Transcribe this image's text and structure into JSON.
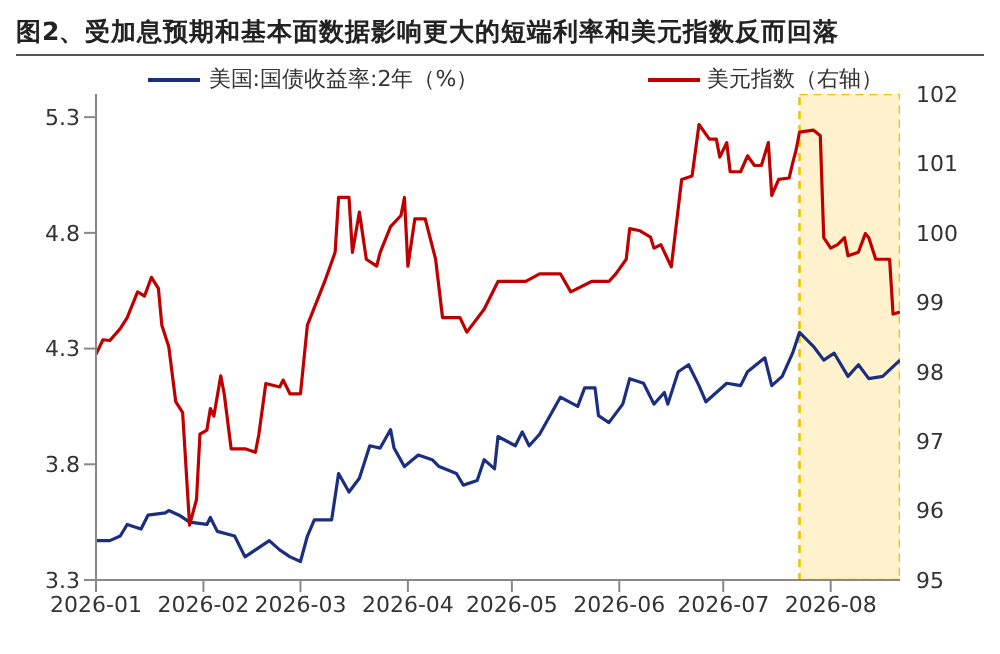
{
  "chart_data": {
    "type": "line",
    "title": "图2、受加息预期和基本面数据影响更大的短端利率和美元指数反而回落",
    "series": [
      {
        "name": "美国:国债收益率:2年（%）",
        "color": "#1b2e80",
        "x": [
          "2026-01-01",
          "2026-01-05",
          "2026-01-08",
          "2026-01-10",
          "2026-01-14",
          "2026-01-16",
          "2026-01-21",
          "2026-01-22",
          "2026-01-25",
          "2026-01-28",
          "2026-02-02",
          "2026-02-03",
          "2026-02-05",
          "2026-02-10",
          "2026-02-13",
          "2026-02-17",
          "2026-02-20",
          "2026-02-23",
          "2026-02-26",
          "2026-03-01",
          "2026-03-03",
          "2026-03-05",
          "2026-03-10",
          "2026-03-12",
          "2026-03-15",
          "2026-03-18",
          "2026-03-21",
          "2026-03-24",
          "2026-03-27",
          "2026-03-28",
          "2026-03-31",
          "2026-04-04",
          "2026-04-08",
          "2026-04-10",
          "2026-04-15",
          "2026-04-17",
          "2026-04-21",
          "2026-04-23",
          "2026-04-26",
          "2026-04-27",
          "2026-05-02",
          "2026-05-04",
          "2026-05-06",
          "2026-05-09",
          "2026-05-12",
          "2026-05-15",
          "2026-05-20",
          "2026-05-22",
          "2026-05-25",
          "2026-05-26",
          "2026-05-29",
          "2026-06-02",
          "2026-06-04",
          "2026-06-08",
          "2026-06-11",
          "2026-06-14",
          "2026-06-15",
          "2026-06-18",
          "2026-06-21",
          "2026-06-24",
          "2026-06-26",
          "2026-07-02",
          "2026-07-06",
          "2026-07-08",
          "2026-07-13",
          "2026-07-15",
          "2026-07-18",
          "2026-07-21",
          "2026-07-23",
          "2026-07-27",
          "2026-07-30",
          "2026-08-02",
          "2026-08-06",
          "2026-08-09",
          "2026-08-12",
          "2026-08-16",
          "2026-08-21"
        ],
        "values": [
          3.47,
          3.47,
          3.49,
          3.54,
          3.52,
          3.58,
          3.59,
          3.6,
          3.58,
          3.55,
          3.54,
          3.57,
          3.51,
          3.49,
          3.4,
          3.44,
          3.47,
          3.43,
          3.4,
          3.38,
          3.49,
          3.56,
          3.56,
          3.76,
          3.68,
          3.74,
          3.88,
          3.87,
          3.95,
          3.87,
          3.79,
          3.84,
          3.82,
          3.79,
          3.76,
          3.71,
          3.73,
          3.82,
          3.78,
          3.92,
          3.88,
          3.94,
          3.88,
          3.93,
          4.01,
          4.09,
          4.05,
          4.13,
          4.13,
          4.01,
          3.98,
          4.06,
          4.17,
          4.15,
          4.06,
          4.11,
          4.06,
          4.2,
          4.23,
          4.14,
          4.07,
          4.15,
          4.14,
          4.2,
          4.26,
          4.14,
          4.18,
          4.28,
          4.37,
          4.31,
          4.25,
          4.28,
          4.18,
          4.23,
          4.17,
          4.18,
          4.25
        ]
      },
      {
        "name": "美元指数（右轴）",
        "color": "#c00000",
        "axis": "y2",
        "x": [
          "2026-01-01",
          "2026-01-03",
          "2026-01-05",
          "2026-01-08",
          "2026-01-10",
          "2026-01-13",
          "2026-01-15",
          "2026-01-17",
          "2026-01-19",
          "2026-01-20",
          "2026-01-22",
          "2026-01-24",
          "2026-01-26",
          "2026-01-28",
          "2026-01-30",
          "2026-01-31",
          "2026-02-02",
          "2026-02-03",
          "2026-02-04",
          "2026-02-06",
          "2026-02-07",
          "2026-02-09",
          "2026-02-13",
          "2026-02-16",
          "2026-02-17",
          "2026-02-19",
          "2026-02-23",
          "2026-02-24",
          "2026-02-26",
          "2026-03-01",
          "2026-03-03",
          "2026-03-08",
          "2026-03-11",
          "2026-03-12",
          "2026-03-15",
          "2026-03-16",
          "2026-03-18",
          "2026-03-20",
          "2026-03-23",
          "2026-03-24",
          "2026-03-27",
          "2026-03-30",
          "2026-03-31",
          "2026-04-01",
          "2026-04-03",
          "2026-04-06",
          "2026-04-09",
          "2026-04-11",
          "2026-04-16",
          "2026-04-18",
          "2026-04-23",
          "2026-04-27",
          "2026-05-05",
          "2026-05-09",
          "2026-05-15",
          "2026-05-18",
          "2026-05-24",
          "2026-05-29",
          "2026-05-31",
          "2026-06-03",
          "2026-06-04",
          "2026-06-07",
          "2026-06-10",
          "2026-06-11",
          "2026-06-13",
          "2026-06-16",
          "2026-06-19",
          "2026-06-22",
          "2026-06-24",
          "2026-06-27",
          "2026-06-29",
          "2026-06-30",
          "2026-07-02",
          "2026-07-03",
          "2026-07-06",
          "2026-07-08",
          "2026-07-10",
          "2026-07-12",
          "2026-07-14",
          "2026-07-15",
          "2026-07-17",
          "2026-07-20",
          "2026-07-21",
          "2026-07-22",
          "2026-07-23",
          "2026-07-27",
          "2026-07-29",
          "2026-07-30",
          "2026-08-01",
          "2026-08-03",
          "2026-08-05",
          "2026-08-06",
          "2026-08-09",
          "2026-08-11",
          "2026-08-12",
          "2026-08-14",
          "2026-08-18",
          "2026-08-19",
          "2026-08-21"
        ],
        "values": [
          98.25,
          98.46,
          98.45,
          98.62,
          98.78,
          99.15,
          99.09,
          99.36,
          99.2,
          98.67,
          98.36,
          97.57,
          97.41,
          95.79,
          96.16,
          97.1,
          97.16,
          97.47,
          97.36,
          97.94,
          97.68,
          96.89,
          96.89,
          96.84,
          97.1,
          97.83,
          97.78,
          97.88,
          97.68,
          97.68,
          98.67,
          99.3,
          99.72,
          100.51,
          100.51,
          99.72,
          100.3,
          99.62,
          99.52,
          99.72,
          100.09,
          100.25,
          100.51,
          99.52,
          100.2,
          100.2,
          99.62,
          98.78,
          98.78,
          98.57,
          98.9,
          99.3,
          99.3,
          99.41,
          99.41,
          99.15,
          99.3,
          99.3,
          99.41,
          99.62,
          100.06,
          100.03,
          99.94,
          99.78,
          99.83,
          99.51,
          100.77,
          100.82,
          101.56,
          101.35,
          101.35,
          101.09,
          101.3,
          100.88,
          100.88,
          101.11,
          100.97,
          100.97,
          101.3,
          100.54,
          100.77,
          100.79,
          101.0,
          101.19,
          101.45,
          101.48,
          101.4,
          99.93,
          99.78,
          99.83,
          99.93,
          99.67,
          99.72,
          99.99,
          99.93,
          99.62,
          99.62,
          98.83,
          98.86
        ]
      }
    ],
    "xlim": [
      "2026-01-01",
      "2026-08-21"
    ],
    "xticks": [
      "2026-01",
      "2026-02",
      "2026-03",
      "2026-04",
      "2026-05",
      "2026-06",
      "2026-07",
      "2026-08"
    ],
    "ylim": [
      3.3,
      5.4
    ],
    "yticks": [
      3.3,
      3.8,
      4.3,
      4.8,
      5.3
    ],
    "y2lim": [
      95,
      102
    ],
    "y2ticks": [
      95,
      96,
      97,
      98,
      99,
      100,
      101,
      102
    ],
    "bands": [
      {
        "axis": "x",
        "from": "2026-07-23",
        "to": "2026-08-21",
        "color": "#fff2cc"
      }
    ],
    "legend": "top",
    "grid": false,
    "marker": "none",
    "line_style": "solid"
  }
}
